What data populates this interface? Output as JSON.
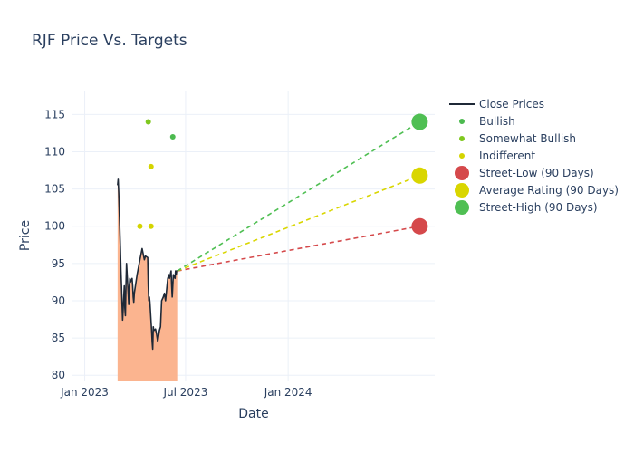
{
  "chart_data": {
    "type": "line",
    "title": "RJF Price Vs. Targets",
    "xlabel": "Date",
    "ylabel": "Price",
    "xlim": [
      "2022-12-10",
      "2024-09-20"
    ],
    "ylim": [
      79.3,
      118.2
    ],
    "x_ticks": [
      {
        "date": "2023-01-01",
        "label": "Jan 2023"
      },
      {
        "date": "2023-07-01",
        "label": "Jul 2023"
      },
      {
        "date": "2024-01-01",
        "label": "Jan 2024"
      }
    ],
    "y_ticks": [
      80,
      85,
      90,
      95,
      100,
      105,
      110,
      115
    ],
    "grid": true,
    "legend_position": "right",
    "fill_base": 79.3,
    "close_prices": {
      "name": "Close Prices",
      "color": "#1f2937",
      "fill_color": "#fbb48f",
      "x": [
        "2023-03-01",
        "2023-03-02",
        "2023-03-03",
        "2023-03-06",
        "2023-03-07",
        "2023-03-08",
        "2023-03-09",
        "2023-03-10",
        "2023-03-13",
        "2023-03-14",
        "2023-03-15",
        "2023-03-16",
        "2023-03-17",
        "2023-03-20",
        "2023-03-21",
        "2023-03-22",
        "2023-03-23",
        "2023-03-24",
        "2023-03-27",
        "2023-03-28",
        "2023-03-29",
        "2023-03-30",
        "2023-03-31",
        "2023-04-03",
        "2023-04-05",
        "2023-04-10",
        "2023-04-14",
        "2023-04-18",
        "2023-04-20",
        "2023-04-24",
        "2023-04-25",
        "2023-04-26",
        "2023-04-27",
        "2023-04-28",
        "2023-05-01",
        "2023-05-02",
        "2023-05-03",
        "2023-05-04",
        "2023-05-05",
        "2023-05-08",
        "2023-05-10",
        "2023-05-12",
        "2023-05-15",
        "2023-05-17",
        "2023-05-19",
        "2023-05-22",
        "2023-05-24",
        "2023-05-26",
        "2023-05-30",
        "2023-06-01",
        "2023-06-02",
        "2023-06-05",
        "2023-06-06",
        "2023-06-07",
        "2023-06-08",
        "2023-06-09",
        "2023-06-12",
        "2023-06-13",
        "2023-06-14",
        "2023-06-15",
        "2023-06-16"
      ],
      "values": [
        105.5,
        106.3,
        104.5,
        97.0,
        94.0,
        92.0,
        89.5,
        87.4,
        92.0,
        89.0,
        88.0,
        92.0,
        95.0,
        91.0,
        89.5,
        92.0,
        93.0,
        92.5,
        93.0,
        92.0,
        90.5,
        89.8,
        91.0,
        92.5,
        93.5,
        95.5,
        97.0,
        95.5,
        96.0,
        95.8,
        92.0,
        90.0,
        90.5,
        89.8,
        86.0,
        84.5,
        83.5,
        86.5,
        86.0,
        86.2,
        85.5,
        84.5,
        86.0,
        86.5,
        90.0,
        90.5,
        91.0,
        90.0,
        93.0,
        93.5,
        93.0,
        94.0,
        92.0,
        90.5,
        92.0,
        93.5,
        93.0,
        94.0,
        93.5,
        94.0,
        94.0
      ]
    },
    "analyst_ratings": [
      {
        "name": "Bullish",
        "color": "#4cba4f",
        "points": [
          {
            "x": "2023-06-08",
            "y": 112
          }
        ]
      },
      {
        "name": "Somewhat Bullish",
        "color": "#7fc81f",
        "points": [
          {
            "x": "2023-04-25",
            "y": 114
          }
        ]
      },
      {
        "name": "Indifferent",
        "color": "#d4d400",
        "points": [
          {
            "x": "2023-04-10",
            "y": 100
          },
          {
            "x": "2023-04-30",
            "y": 108
          },
          {
            "x": "2023-04-30",
            "y": 100
          }
        ]
      }
    ],
    "targets": [
      {
        "name": "Street-Low (90 Days)",
        "color": "#d5494b",
        "start": {
          "x": "2023-06-16",
          "y": 94.0
        },
        "end": {
          "x": "2024-08-24",
          "y": 100
        }
      },
      {
        "name": "Average Rating (90 Days)",
        "color": "#d9d600",
        "start": {
          "x": "2023-06-16",
          "y": 94.0
        },
        "end": {
          "x": "2024-08-24",
          "y": 106.8
        }
      },
      {
        "name": "Street-High (90 Days)",
        "color": "#4fbf53",
        "start": {
          "x": "2023-06-16",
          "y": 94.0
        },
        "end": {
          "x": "2024-08-24",
          "y": 114
        }
      }
    ],
    "legend": [
      {
        "name": "Close Prices",
        "kind": "line",
        "color": "#1f2937"
      },
      {
        "name": "Bullish",
        "kind": "small-dot",
        "color": "#4cba4f"
      },
      {
        "name": "Somewhat Bullish",
        "kind": "small-dot",
        "color": "#7fc81f"
      },
      {
        "name": "Indifferent",
        "kind": "small-dot",
        "color": "#d4d400"
      },
      {
        "name": "Street-Low (90 Days)",
        "kind": "big-dot",
        "color": "#d5494b"
      },
      {
        "name": "Average Rating (90 Days)",
        "kind": "big-dot",
        "color": "#d9d600"
      },
      {
        "name": "Street-High (90 Days)",
        "kind": "big-dot",
        "color": "#4fbf53"
      }
    ]
  }
}
